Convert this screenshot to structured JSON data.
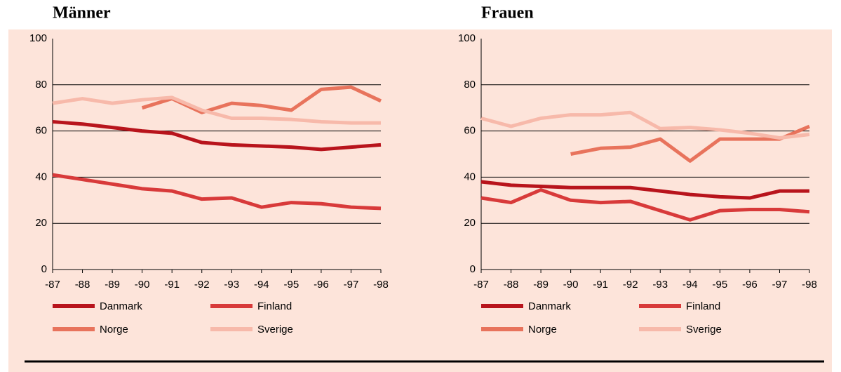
{
  "chart_data": [
    {
      "type": "line",
      "title": "Männer",
      "categories": [
        "-87",
        "-88",
        "-89",
        "-90",
        "-91",
        "-92",
        "-93",
        "-94",
        "-95",
        "-96",
        "-97",
        "-98"
      ],
      "ylim": [
        0,
        100
      ],
      "yticks": [
        0,
        20,
        40,
        60,
        80,
        100
      ],
      "grid": true,
      "legend": "bottom",
      "series": [
        {
          "name": "Danmark",
          "color": "#b8141c",
          "values": [
            64,
            63,
            61.5,
            60,
            59,
            55,
            54,
            53.5,
            53,
            52,
            53,
            54
          ]
        },
        {
          "name": "Finland",
          "color": "#d83a3a",
          "values": [
            41,
            39,
            37,
            35,
            34,
            30.5,
            31,
            27,
            29,
            28.5,
            27,
            26.5
          ]
        },
        {
          "name": "Norge",
          "color": "#e8735c",
          "values": [
            null,
            null,
            null,
            70,
            74,
            68,
            72,
            71,
            69,
            78,
            79,
            73
          ]
        },
        {
          "name": "Sverige",
          "color": "#f7b9aa",
          "values": [
            72,
            74,
            72,
            73.5,
            74.5,
            69,
            65.5,
            65.5,
            65,
            64,
            63.5,
            63.5
          ]
        }
      ]
    },
    {
      "type": "line",
      "title": "Frauen",
      "categories": [
        "-87",
        "-88",
        "-89",
        "-90",
        "-91",
        "-92",
        "-93",
        "-94",
        "-95",
        "-96",
        "-97",
        "-98"
      ],
      "ylim": [
        0,
        100
      ],
      "yticks": [
        0,
        20,
        40,
        60,
        80,
        100
      ],
      "grid": true,
      "legend": "bottom",
      "series": [
        {
          "name": "Danmark",
          "color": "#b8141c",
          "values": [
            38,
            36.5,
            36,
            35.5,
            35.5,
            35.5,
            34,
            32.5,
            31.5,
            31,
            34,
            34
          ]
        },
        {
          "name": "Finland",
          "color": "#d83a3a",
          "values": [
            31,
            29,
            34.5,
            30,
            29,
            29.5,
            25.5,
            21.5,
            25.5,
            26,
            26,
            25
          ]
        },
        {
          "name": "Norge",
          "color": "#e8735c",
          "values": [
            null,
            null,
            null,
            50,
            52.5,
            53,
            56.5,
            47,
            56.5,
            56.5,
            56.5,
            62
          ]
        },
        {
          "name": "Sverige",
          "color": "#f7b9aa",
          "values": [
            65.5,
            62,
            65.5,
            67,
            67,
            68,
            61,
            61.5,
            60.5,
            59,
            57,
            58.5
          ]
        }
      ]
    }
  ]
}
